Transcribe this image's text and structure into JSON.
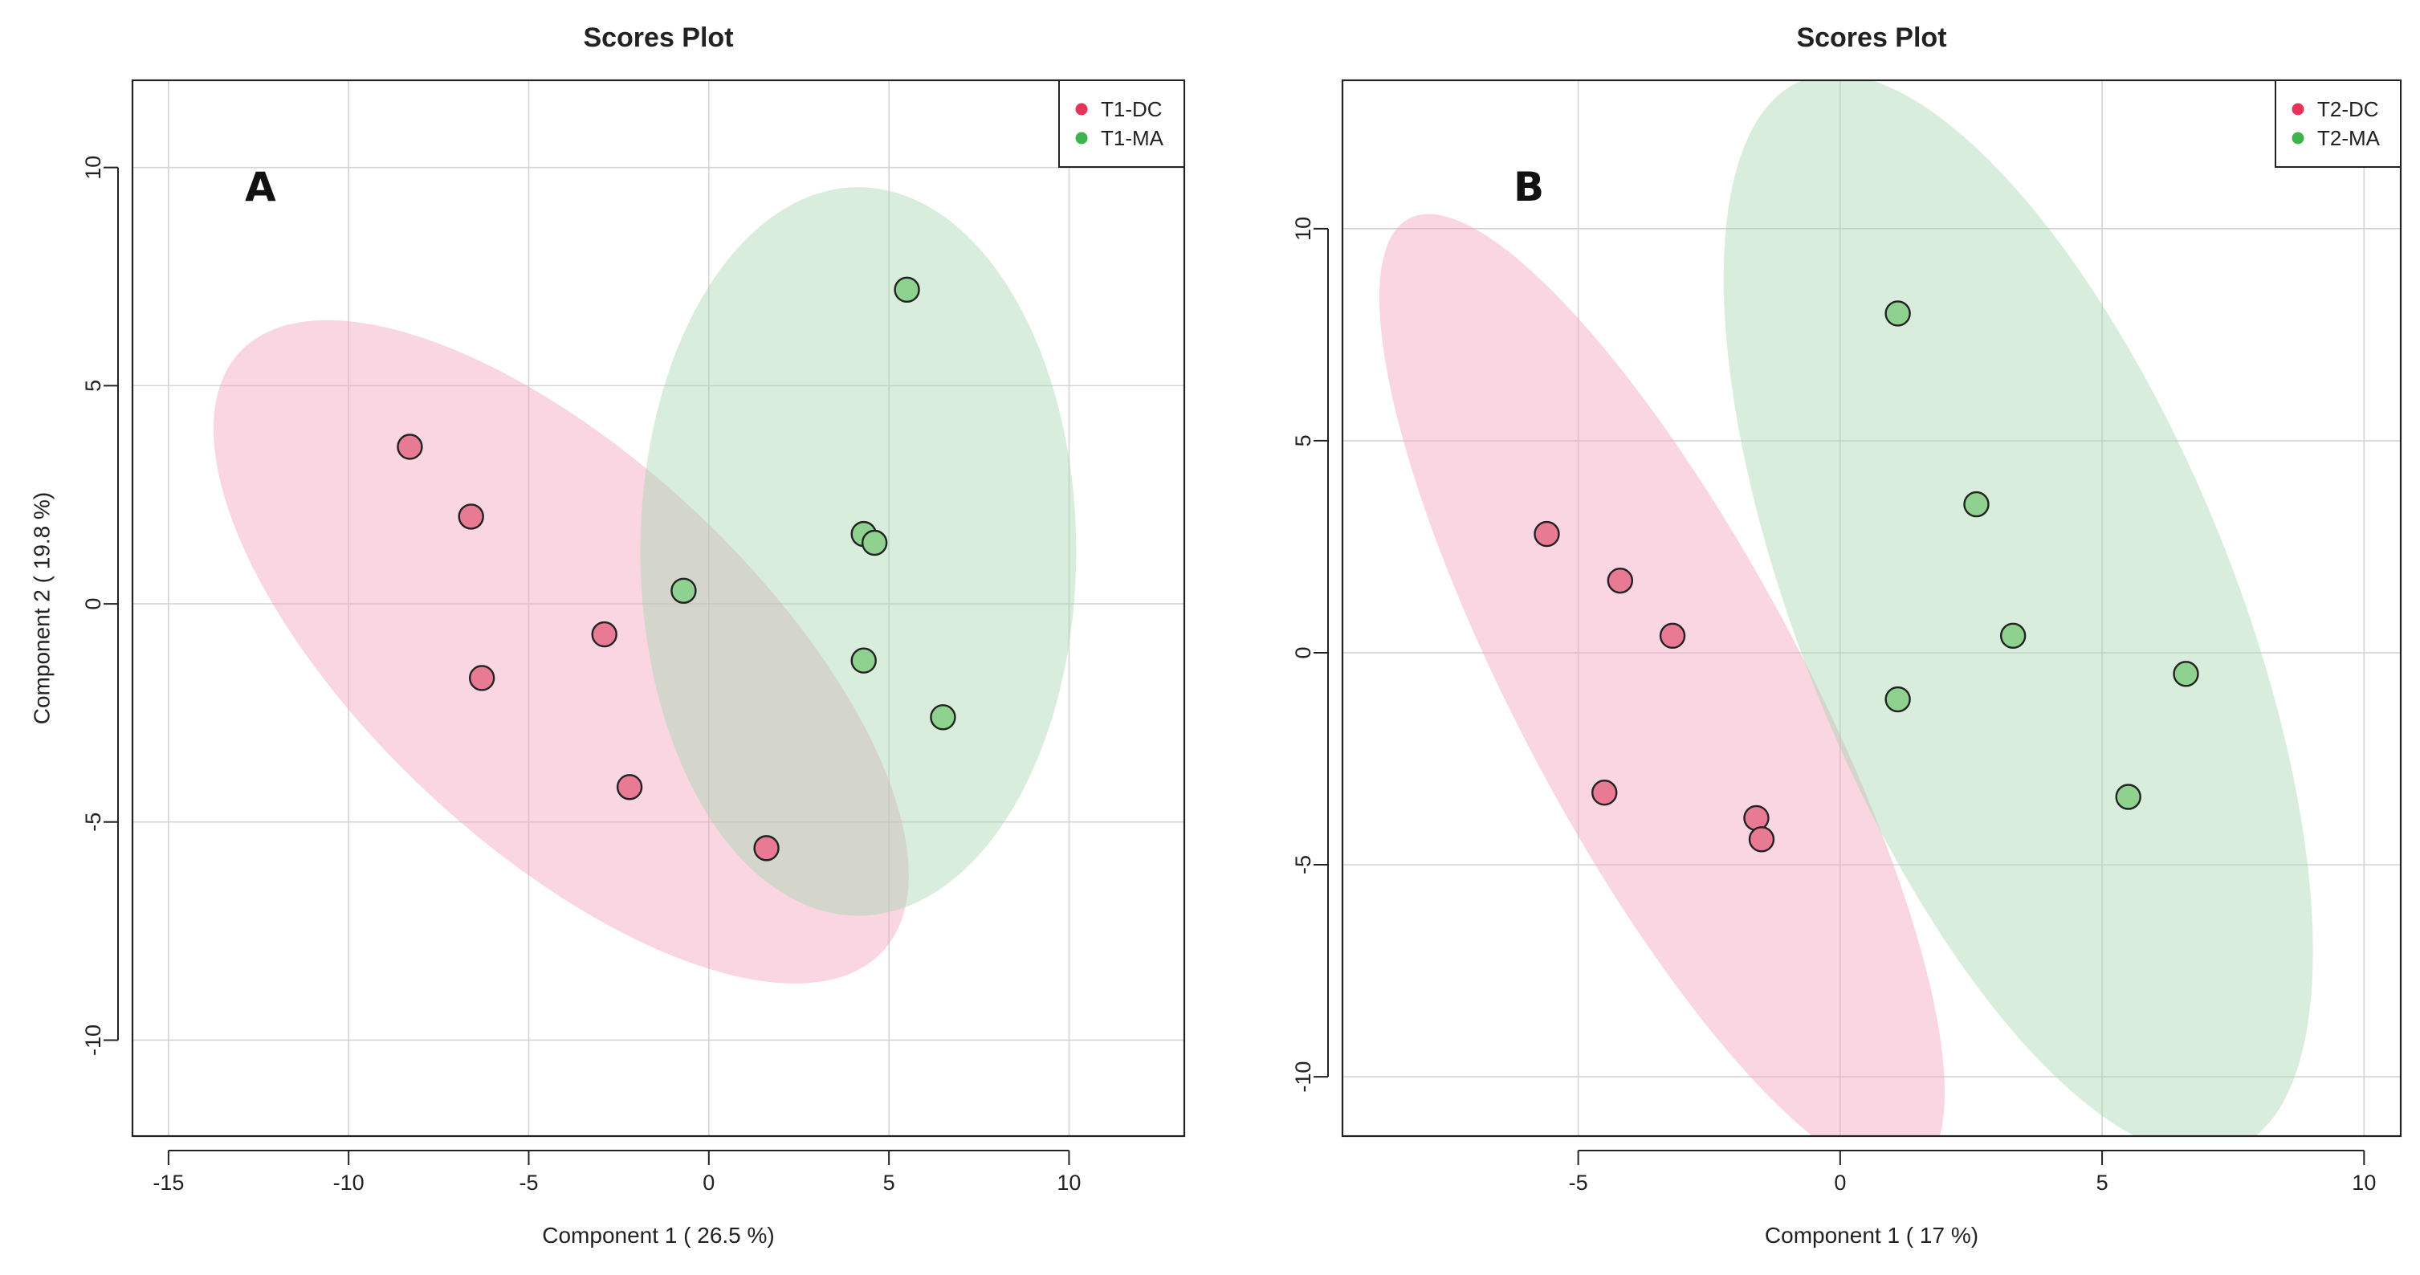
{
  "chart_data": [
    {
      "type": "scatter",
      "title": "Scores Plot",
      "panel_label": "A",
      "xlabel": "Component 1 ( 26.5 %)",
      "ylabel": "Component 2 ( 19.8 %)",
      "xlim": [
        -16,
        13.2
      ],
      "ylim": [
        -12.2,
        12
      ],
      "xticks": [
        -15,
        -10,
        -5,
        0,
        5,
        10
      ],
      "yticks": [
        -10,
        -5,
        0,
        5,
        10
      ],
      "xtick_labels": [
        "-15",
        "-10",
        "-5",
        "0",
        "5",
        "10"
      ],
      "ytick_labels": [
        "-10",
        "-5",
        "0",
        "5",
        "10"
      ],
      "grid": true,
      "legend_position": "top-right",
      "series": [
        {
          "name": "T1-DC",
          "color": "#e8325a",
          "point_fill": "#e87a93",
          "ellipse_fill": "#f1a5bf",
          "points": [
            [
              -8.3,
              3.6
            ],
            [
              -6.6,
              2.0
            ],
            [
              -6.3,
              -1.7
            ],
            [
              -2.9,
              -0.7
            ],
            [
              -2.2,
              -4.2
            ],
            [
              1.6,
              -5.6
            ]
          ],
          "ellipse": {
            "cx": -4.1,
            "cy": -1.1,
            "rx": 12.2,
            "ry": 4.45,
            "angle_deg": -43
          }
        },
        {
          "name": "T1-MA",
          "color": "#3cb44b",
          "point_fill": "#8fd18f",
          "ellipse_fill": "#a8d8b0",
          "points": [
            [
              5.5,
              7.2
            ],
            [
              4.3,
              1.6
            ],
            [
              4.6,
              1.4
            ],
            [
              -0.7,
              0.3
            ],
            [
              4.3,
              -1.3
            ],
            [
              6.5,
              -2.6
            ]
          ],
          "ellipse": {
            "cx": 4.15,
            "cy": 1.2,
            "rx": 6.05,
            "ry": 8.35,
            "angle_deg": 0
          }
        }
      ]
    },
    {
      "type": "scatter",
      "title": "Scores Plot",
      "panel_label": "B",
      "xlabel": "Component 1 ( 17 %)",
      "ylabel": "Component 2 ( 19.8 %)",
      "xlim": [
        -9.5,
        10.7
      ],
      "ylim": [
        -11.4,
        13.5
      ],
      "xticks": [
        -5,
        0,
        5,
        10
      ],
      "yticks": [
        -10,
        -5,
        0,
        5,
        10
      ],
      "xtick_labels": [
        "-5",
        "0",
        "5",
        "10"
      ],
      "ytick_labels": [
        "-10",
        "-5",
        "0",
        "5",
        "10"
      ],
      "grid": true,
      "legend_position": "top-right",
      "series": [
        {
          "name": "T2-DC",
          "color": "#e8325a",
          "point_fill": "#e87a93",
          "ellipse_fill": "#f1a5bf",
          "points": [
            [
              -5.6,
              2.8
            ],
            [
              -4.2,
              1.7
            ],
            [
              -3.2,
              0.4
            ],
            [
              -4.5,
              -3.3
            ],
            [
              -1.6,
              -3.9
            ],
            [
              -1.5,
              -4.4
            ]
          ],
          "ellipse": {
            "cx": -3.4,
            "cy": -1.0,
            "rx": 10.3,
            "ry": 3.35,
            "angle_deg": -62
          }
        },
        {
          "name": "T2-MA",
          "color": "#3cb44b",
          "point_fill": "#8fd18f",
          "ellipse_fill": "#a8d8b0",
          "points": [
            [
              1.1,
              8.0
            ],
            [
              2.6,
              3.5
            ],
            [
              3.3,
              0.4
            ],
            [
              6.6,
              -0.5
            ],
            [
              1.1,
              -1.1
            ],
            [
              5.5,
              -3.4
            ]
          ],
          "ellipse": {
            "cx": 3.4,
            "cy": 0.9,
            "rx": 11.0,
            "ry": 5.1,
            "angle_deg": -68
          }
        }
      ]
    }
  ]
}
